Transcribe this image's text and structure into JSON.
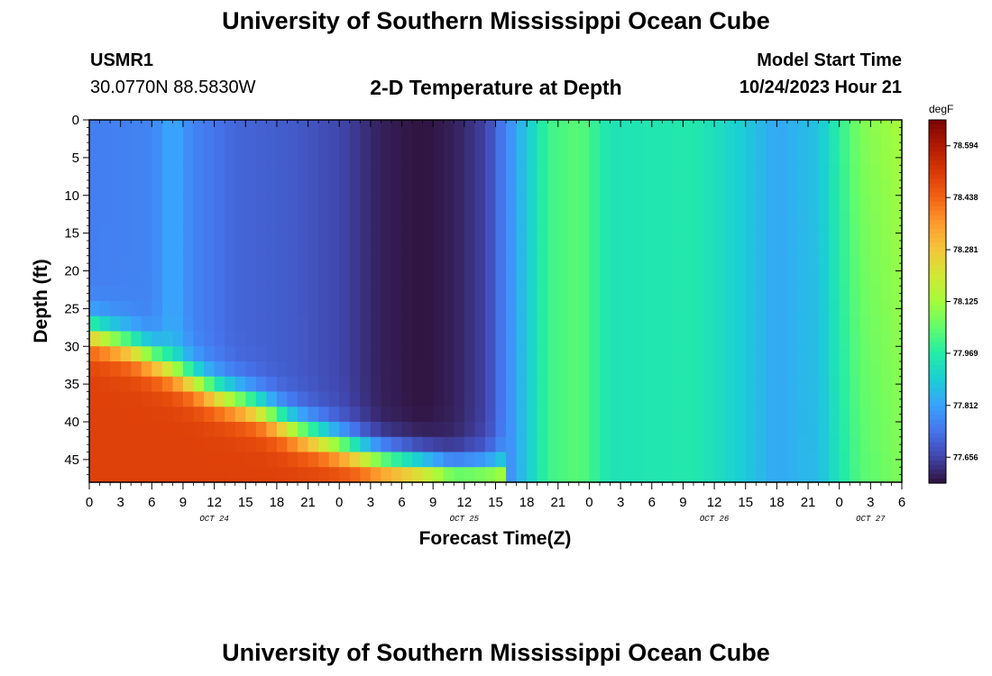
{
  "header": {
    "title": "University of Southern Mississippi Ocean Cube",
    "station_id": "USMR1",
    "station_coords": "30.0770N  88.5830W",
    "plot_title": "2-D Temperature at Depth",
    "model_start_label": "Model Start Time",
    "model_start_value": "10/24/2023 Hour 21",
    "footer_title": "University of Southern Mississippi Ocean Cube"
  },
  "chart_data": {
    "type": "heatmap",
    "title": "2-D Temperature at Depth",
    "xlabel": "Forecast Time(Z)",
    "ylabel": "Depth (ft)",
    "x_range_hours": [
      0,
      78
    ],
    "y_range": [
      0,
      48
    ],
    "y_inverted": true,
    "x_tick_labels": [
      "0",
      "3",
      "6",
      "9",
      "12",
      "15",
      "18",
      "21",
      "0",
      "3",
      "6",
      "9",
      "12",
      "15",
      "18",
      "21",
      "0",
      "3",
      "6",
      "9",
      "12",
      "15",
      "18",
      "21",
      "0",
      "3",
      "6"
    ],
    "y_ticks": [
      0,
      5,
      10,
      15,
      20,
      25,
      30,
      35,
      40,
      45
    ],
    "day_labels": [
      {
        "label": "OCT 24",
        "hour": 12
      },
      {
        "label": "OCT 25",
        "hour": 36
      },
      {
        "label": "OCT 26",
        "hour": 60
      },
      {
        "label": "OCT 27",
        "hour": 75
      }
    ],
    "colorbar": {
      "unit": "degF",
      "min": 77.578,
      "max": 78.672,
      "labels": [
        "78.594",
        "78.438",
        "78.281",
        "78.125",
        "77.969",
        "77.812",
        "77.656"
      ],
      "colors": [
        "#30123b",
        "#4145ab",
        "#4675ed",
        "#39a2fc",
        "#1bcfd4",
        "#24eca6",
        "#61fc6c",
        "#a4fc3b",
        "#d1e834",
        "#f3c63a",
        "#fe9b2d",
        "#f36315",
        "#d93806",
        "#b11901",
        "#7a0402"
      ]
    },
    "surface_temperature_by_hour": [
      [
        0,
        77.75
      ],
      [
        6,
        77.76
      ],
      [
        8,
        77.83
      ],
      [
        10,
        77.76
      ],
      [
        14,
        77.71
      ],
      [
        20,
        77.69
      ],
      [
        24,
        77.66
      ],
      [
        28,
        77.6
      ],
      [
        32,
        77.58
      ],
      [
        35,
        77.6
      ],
      [
        38,
        77.65
      ],
      [
        40,
        77.76
      ],
      [
        42,
        77.88
      ],
      [
        44,
        78.0
      ],
      [
        47,
        78.04
      ],
      [
        50,
        77.94
      ],
      [
        54,
        77.95
      ],
      [
        58,
        77.96
      ],
      [
        62,
        77.9
      ],
      [
        66,
        77.82
      ],
      [
        70,
        77.87
      ],
      [
        72,
        77.98
      ],
      [
        74,
        78.08
      ],
      [
        78,
        78.13
      ]
    ],
    "bottom_layer_interface_depth_by_hour": [
      [
        0,
        28
      ],
      [
        4,
        30
      ],
      [
        8,
        33
      ],
      [
        12,
        36
      ],
      [
        16,
        38
      ],
      [
        20,
        41
      ],
      [
        24,
        43
      ],
      [
        28,
        45
      ],
      [
        32,
        46
      ],
      [
        35,
        47
      ],
      [
        38,
        47
      ]
    ],
    "bottom_layer_temperature": 78.5
  }
}
